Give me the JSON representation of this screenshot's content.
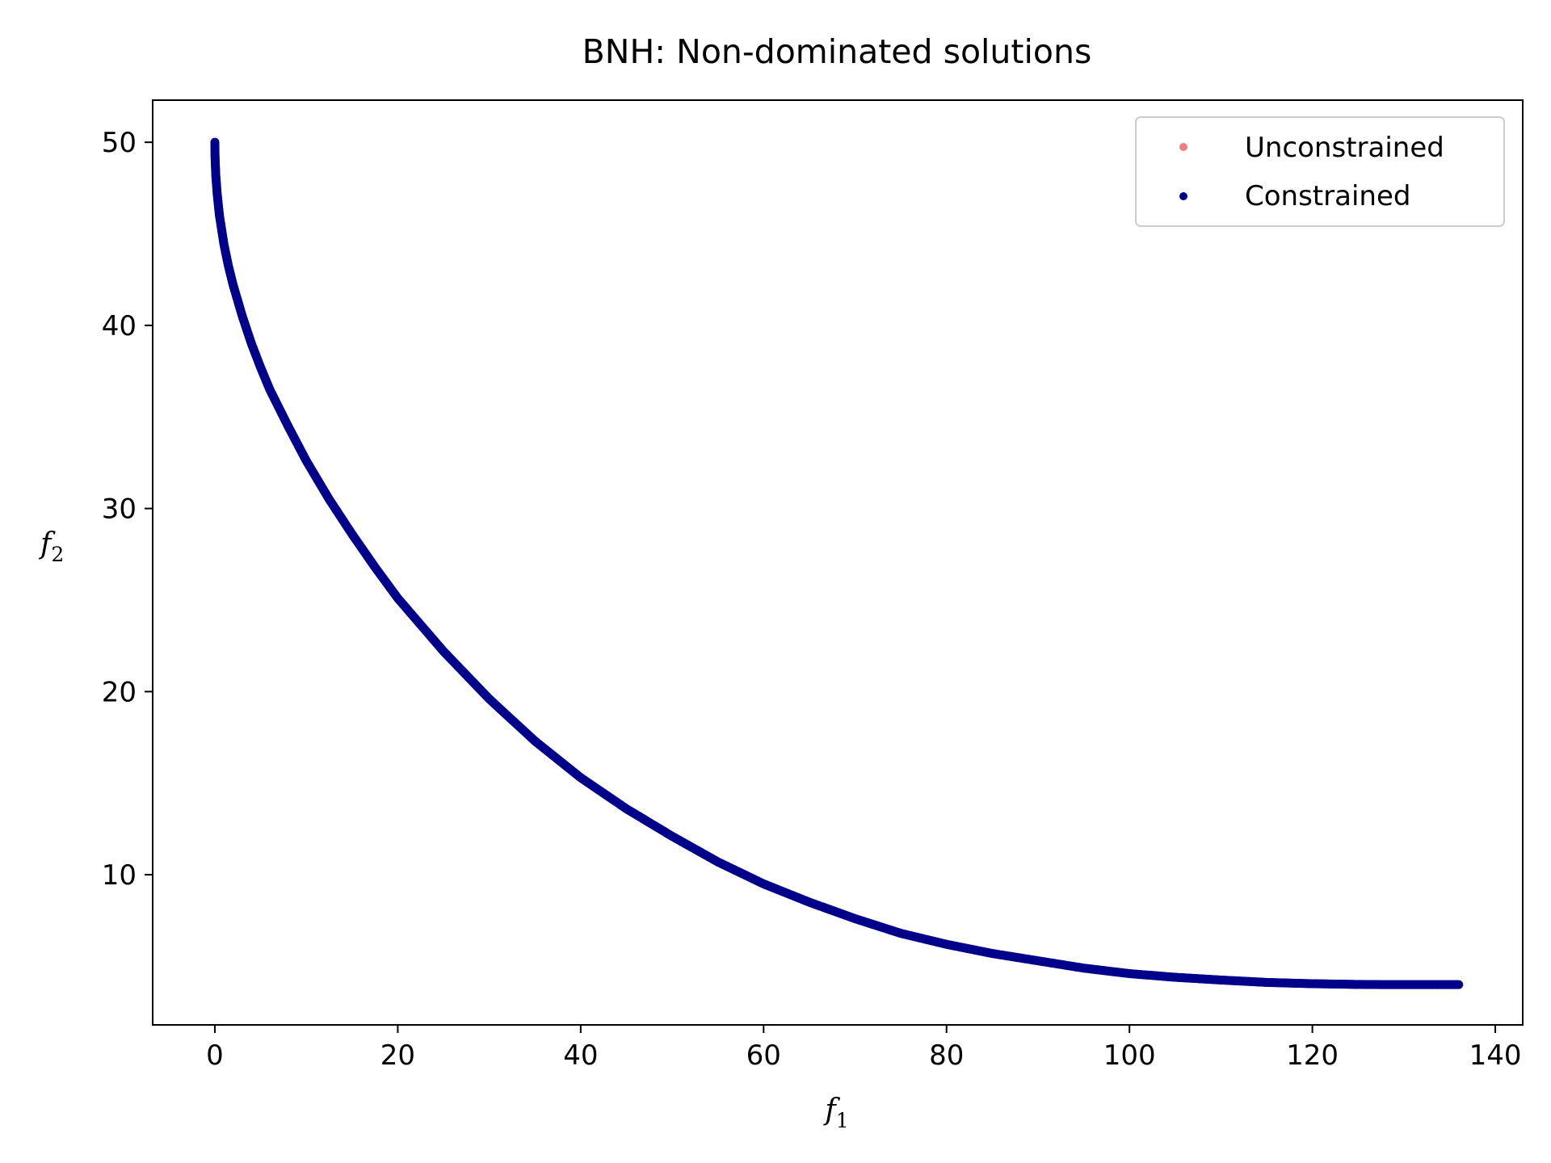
{
  "chart_data": {
    "type": "scatter",
    "title": "BNH: Non-dominated solutions",
    "xlabel": "f",
    "xlabel_sub": "1",
    "ylabel": "f",
    "ylabel_sub": "2",
    "xlim": [
      -6.8,
      143
    ],
    "ylim": [
      1.8,
      52.3
    ],
    "xticks": [
      0,
      20,
      40,
      60,
      80,
      100,
      120,
      140
    ],
    "yticks": [
      10,
      20,
      30,
      40,
      50
    ],
    "grid": false,
    "legend_position": "top-right",
    "series": [
      {
        "name": "Unconstrained",
        "color": "#f08080",
        "x": [],
        "y": []
      },
      {
        "name": "Constrained",
        "color": "#00008b",
        "x": [
          0.0,
          0.02,
          0.1,
          0.25,
          0.5,
          1.0,
          1.5,
          2.0,
          3.0,
          4.0,
          5.0,
          6.0,
          8.0,
          10.0,
          12.5,
          15.0,
          17.5,
          20.0,
          25.0,
          30.0,
          35.0,
          40.0,
          45.0,
          50.0,
          55.0,
          60.0,
          65.0,
          70.0,
          75.0,
          80.0,
          85.0,
          90.0,
          95.0,
          100.0,
          105.0,
          110.0,
          115.0,
          120.0,
          125.0,
          128.0,
          131.0,
          134.0,
          136.0
        ],
        "y": [
          50.0,
          49.2,
          48.2,
          47.2,
          46.0,
          44.4,
          43.2,
          42.2,
          40.5,
          39.0,
          37.7,
          36.5,
          34.5,
          32.6,
          30.5,
          28.6,
          26.8,
          25.1,
          22.2,
          19.6,
          17.3,
          15.3,
          13.6,
          12.1,
          10.7,
          9.5,
          8.5,
          7.6,
          6.8,
          6.2,
          5.7,
          5.3,
          4.9,
          4.6,
          4.4,
          4.25,
          4.12,
          4.05,
          4.01,
          4.0,
          4.0,
          4.0,
          4.0
        ]
      }
    ]
  }
}
